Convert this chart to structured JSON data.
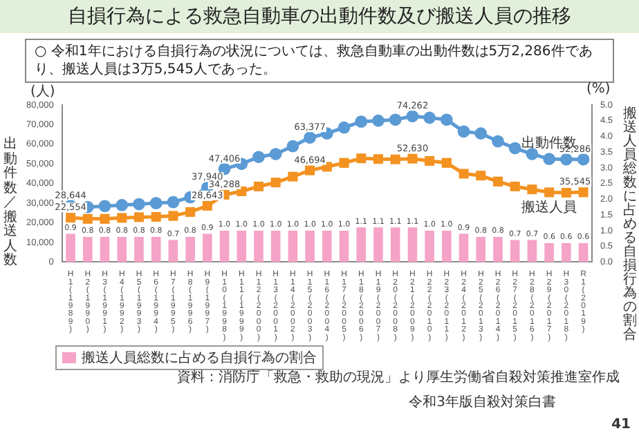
{
  "chart_data": {
    "type": "bar",
    "title": "自損行為による救急自動車の出動件数及び搬送人員の推移",
    "subtitle": "○  令和1年における自損行為の状況については、救急自動車の出動件数は5万2,286件であり、搬送人員は3万5,545人であった。",
    "ylabel": "出動件数／搬送人数",
    "y2label": "搬送人員総数に占める自損行為の割合",
    "annotations": [
      "(人)",
      "(%)",
      "資料：消防庁「救急・救助の現況」より厚生労働省自殺対策推進室作成",
      "令和3年版自殺対策白書",
      "41"
    ],
    "categories": [
      "H1(1989)",
      "H2(1990)",
      "H3(1991)",
      "H4(1992)",
      "H5(1993)",
      "H6(1994)",
      "H7(1995)",
      "H8(1996)",
      "H9(1997)",
      "H10(1998)",
      "H11(1999)",
      "H12(2000)",
      "H13(2001)",
      "H14(2002)",
      "H15(2003)",
      "H16(2004)",
      "H17(2005)",
      "H18(2006)",
      "H19(2007)",
      "H20(2008)",
      "H21(2009)",
      "H22(2010)",
      "H23(2011)",
      "H24(2012)",
      "H25(2013)",
      "H26(2014)",
      "H27(2015)",
      "H28(2016)",
      "H29(2017)",
      "H30(2018)",
      "R1(2019)"
    ],
    "series": [
      {
        "name": "搬送人員総数に占める自損行為の割合",
        "axis": "y2",
        "color": "#f5a3c7",
        "values": [
          0.9,
          0.8,
          0.8,
          0.8,
          0.8,
          0.8,
          0.7,
          0.8,
          0.9,
          1.0,
          1.0,
          1.0,
          1.0,
          1.0,
          1.0,
          1.0,
          1.0,
          1.1,
          1.1,
          1.1,
          1.1,
          1.0,
          1.0,
          0.9,
          0.8,
          0.8,
          0.7,
          0.7,
          0.6,
          0.6,
          0.6
        ],
        "value_labels": [
          "0.9",
          "0.8",
          "0.8",
          "0.8",
          "0.8",
          "0.8",
          "0.7",
          "0.8",
          "0.9",
          "1.0",
          "1.0",
          "1.0",
          "1.0",
          "1.0",
          "1.0",
          "1.0",
          "1.0",
          "1.1",
          "1.1",
          "1.1",
          "1.1",
          "1.0",
          "1.0",
          "0.9",
          "0.8",
          "0.8",
          "0.7",
          "0.7",
          "0.6",
          "0.6",
          "0.6"
        ]
      },
      {
        "name": "出動件数",
        "type": "line",
        "marker": "circle",
        "color": "#5b9bd5",
        "values": [
          28644,
          28000,
          28500,
          29000,
          29500,
          30000,
          30500,
          33000,
          37940,
          47406,
          50000,
          53500,
          55000,
          59000,
          63377,
          65500,
          68500,
          71500,
          72000,
          72500,
          74262,
          73500,
          72500,
          66500,
          65500,
          61500,
          58000,
          55000,
          52500,
          52300,
          52286
        ],
        "value_labels": [
          "28,644",
          null,
          null,
          null,
          null,
          null,
          null,
          null,
          "37,940",
          "47,406",
          null,
          null,
          null,
          null,
          "63,377",
          null,
          null,
          null,
          null,
          null,
          "74,262",
          null,
          null,
          null,
          null,
          null,
          null,
          null,
          null,
          null,
          "52,286"
        ]
      },
      {
        "name": "搬送人員",
        "type": "line",
        "marker": "square",
        "color": "#f39220",
        "values": [
          22554,
          22000,
          22000,
          22500,
          22800,
          23000,
          23500,
          25500,
          28643,
          34288,
          36000,
          38500,
          40500,
          43500,
          46694,
          48500,
          50500,
          52800,
          52500,
          52300,
          52630,
          51500,
          50500,
          45000,
          44000,
          41000,
          38500,
          37000,
          35500,
          35300,
          35545
        ],
        "value_labels": [
          "22,554",
          null,
          null,
          null,
          null,
          null,
          null,
          null,
          "28,643",
          "34,288",
          null,
          null,
          null,
          null,
          "46,694",
          null,
          null,
          null,
          null,
          null,
          "52,630",
          null,
          null,
          null,
          null,
          null,
          null,
          null,
          null,
          null,
          "35,545"
        ]
      }
    ],
    "ylim": [
      0,
      80000
    ],
    "yticks": [
      {
        "value": 0,
        "label": "0"
      },
      {
        "value": 10000,
        "label": "10,000"
      },
      {
        "value": 20000,
        "label": "20,000"
      },
      {
        "value": 30000,
        "label": "30,000"
      },
      {
        "value": 40000,
        "label": "40,000"
      },
      {
        "value": 50000,
        "label": "50,000"
      },
      {
        "value": 60000,
        "label": "60,000"
      },
      {
        "value": 70000,
        "label": "70,000"
      },
      {
        "value": 80000,
        "label": "80,000"
      }
    ],
    "y2lim": [
      0,
      5
    ],
    "y2ticks": [
      {
        "value": 0,
        "label": "0.0"
      },
      {
        "value": 0.5,
        "label": "0.5"
      },
      {
        "value": 1,
        "label": "1.0"
      },
      {
        "value": 1.5,
        "label": "1.5"
      },
      {
        "value": 2,
        "label": "2.0"
      },
      {
        "value": 2.5,
        "label": "2.5"
      },
      {
        "value": 3,
        "label": "3.0"
      },
      {
        "value": 3.5,
        "label": "3.5"
      },
      {
        "value": 4,
        "label": "4.0"
      },
      {
        "value": 4.5,
        "label": "4.5"
      },
      {
        "value": 5,
        "label": "5.0"
      }
    ],
    "legend": "bottom left"
  }
}
